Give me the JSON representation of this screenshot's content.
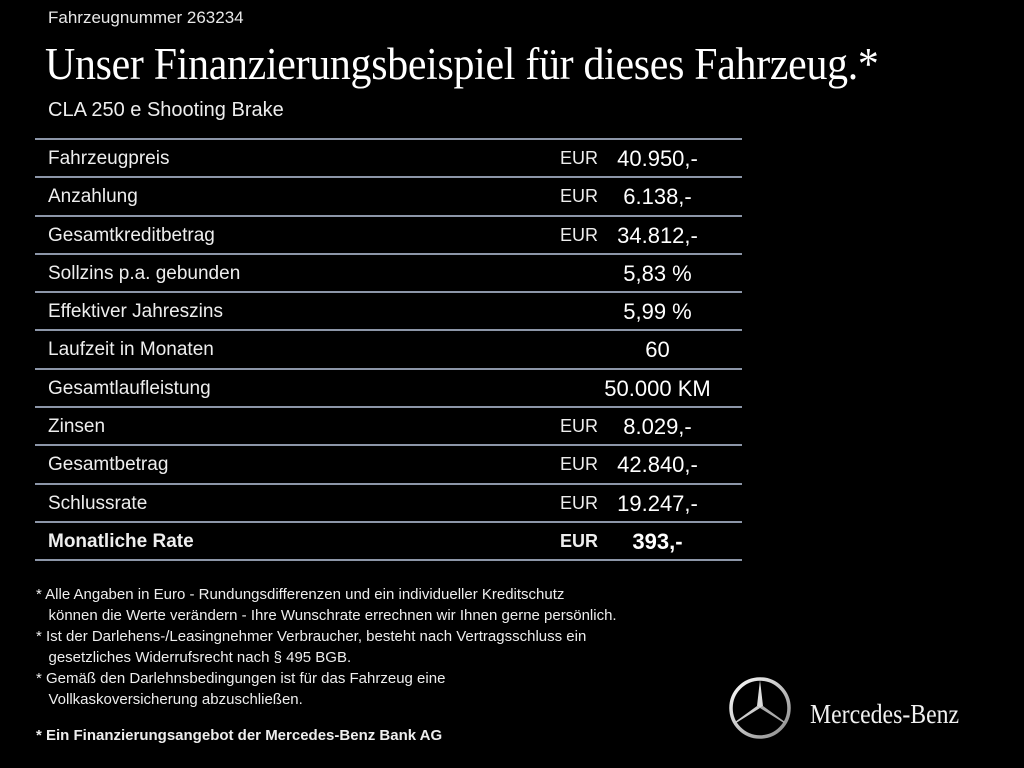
{
  "header": {
    "vehicle_number": "Fahrzeugnummer 263234",
    "title": "Unser Finanzierungsbeispiel für dieses Fahrzeug.*",
    "model": "CLA 250 e Shooting Brake"
  },
  "table": {
    "rows": [
      {
        "label": "Fahrzeugpreis",
        "currency": "EUR",
        "value": "40.950,-"
      },
      {
        "label": "Anzahlung",
        "currency": "EUR",
        "value": "6.138,-"
      },
      {
        "label": "Gesamtkreditbetrag",
        "currency": "EUR",
        "value": "34.812,-"
      },
      {
        "label": "Sollzins p.a. gebunden",
        "currency": "",
        "value": "5,83 %"
      },
      {
        "label": "Effektiver Jahreszins",
        "currency": "",
        "value": "5,99 %"
      },
      {
        "label": "Laufzeit in Monaten",
        "currency": "",
        "value": "60"
      },
      {
        "label": "Gesamtlaufleistung",
        "currency": "",
        "value": "50.000 KM"
      },
      {
        "label": "Zinsen",
        "currency": "EUR",
        "value": "8.029,-"
      },
      {
        "label": "Gesamtbetrag",
        "currency": "EUR",
        "value": "42.840,-"
      },
      {
        "label": "Schlussrate",
        "currency": "EUR",
        "value": "19.247,-"
      },
      {
        "label": "Monatliche Rate",
        "currency": "EUR",
        "value": "393,-"
      }
    ]
  },
  "notes": [
    "* Alle Angaben in Euro - Rundungsdifferenzen und ein individueller Kreditschutz\n   können die Werte verändern - Ihre Wunschrate errechnen wir Ihnen gerne persönlich.",
    "* Ist der Darlehens-/Leasingnehmer Verbraucher, besteht nach Vertragsschluss ein\n   gesetzliches Widerrufsrecht nach § 495 BGB.",
    "* Gemäß den Darlehnsbedingungen ist für das Fahrzeug eine\n   Vollkaskoversicherung abzuschließen."
  ],
  "bank_note": "* Ein Finanzierungsangebot der Mercedes-Benz Bank AG",
  "brand": {
    "name": "Mercedes-Benz",
    "logo_icon": "three-pointed-star-icon"
  },
  "colors": {
    "background": "#000000",
    "divider": "#8c96a8",
    "text": "#ffffff"
  }
}
